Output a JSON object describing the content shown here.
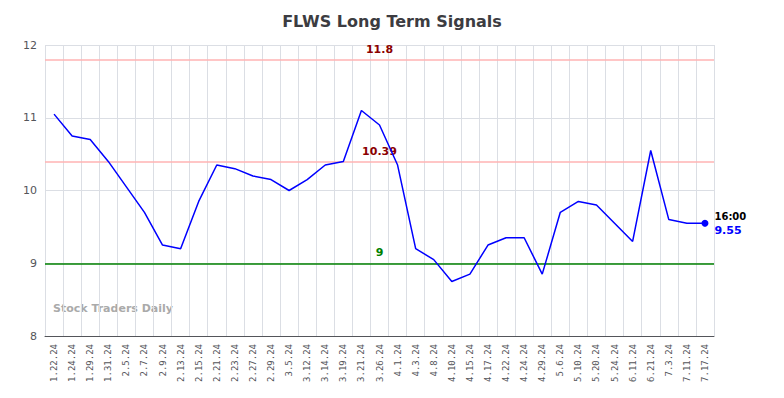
{
  "chart_data": {
    "type": "line",
    "title": "FLWS Long Term Signals",
    "categories": [
      "1.22.24",
      "1.24.24",
      "1.29.24",
      "1.31.24",
      "2.5.24",
      "2.7.24",
      "2.9.24",
      "2.13.24",
      "2.15.24",
      "2.21.24",
      "2.23.24",
      "2.27.24",
      "2.29.24",
      "3.5.24",
      "3.12.24",
      "3.14.24",
      "3.19.24",
      "3.21.24",
      "3.26.24",
      "4.1.24",
      "4.3.24",
      "4.8.24",
      "4.10.24",
      "4.15.24",
      "4.17.24",
      "4.22.24",
      "4.24.24",
      "4.29.24",
      "5.6.24",
      "5.10.24",
      "5.20.24",
      "5.24.24",
      "6.11.24",
      "6.21.24",
      "7.3.24",
      "7.11.24",
      "7.17.24"
    ],
    "values": [
      11.05,
      10.75,
      10.7,
      10.4,
      10.05,
      9.7,
      9.25,
      9.2,
      9.85,
      10.35,
      10.3,
      10.2,
      10.15,
      10.0,
      10.15,
      10.35,
      10.4,
      11.1,
      10.9,
      10.35,
      9.2,
      9.05,
      8.75,
      8.85,
      9.25,
      9.35,
      9.35,
      8.85,
      9.7,
      9.85,
      9.8,
      9.55,
      9.3,
      10.55,
      9.6,
      9.55,
      9.55
    ],
    "color": "blue",
    "ylim": [
      8,
      12
    ],
    "yticks": [
      8,
      9,
      10,
      11,
      12
    ],
    "grid": true,
    "hlines": [
      {
        "value": 11.8,
        "label": "11.8",
        "color": "#ffb3b3",
        "label_color": "#8b0000"
      },
      {
        "value": 10.39,
        "label": "10.39",
        "color": "#ffb3b3",
        "label_color": "#8b0000"
      },
      {
        "value": 9.0,
        "label": "9",
        "color": "green",
        "label_color": "green"
      }
    ],
    "annotations": [
      {
        "text": "16:00",
        "x": "7.17.24",
        "y": 9.55
      },
      {
        "text": "9.55",
        "x": "7.17.24",
        "y": 9.55
      }
    ],
    "watermark": "Stock Traders Daily"
  }
}
